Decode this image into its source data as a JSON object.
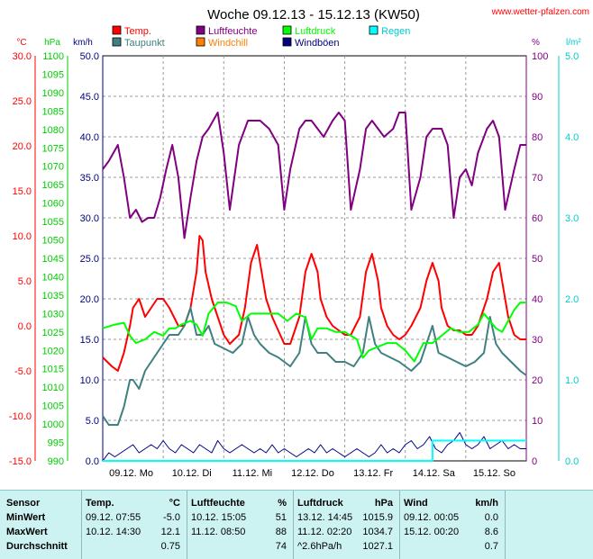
{
  "chart_data": {
    "type": "line",
    "title": "Woche 09.12.13 - 15.12.13 (KW50)",
    "watermark": "www.wetter-pfalzen.com",
    "axes": {
      "temp": {
        "unit": "°C",
        "min": -15,
        "max": 30,
        "step": 5,
        "color": "#ff0000",
        "ticks": [
          "30.0",
          "25.0",
          "20.0",
          "15.0",
          "10.0",
          "5.0",
          "0.0",
          "-5.0",
          "-10.0",
          "-15.0"
        ]
      },
      "pressure": {
        "unit": "hPa",
        "min": 990,
        "max": 1100,
        "step": 5,
        "color": "#00cc00",
        "ticks": [
          "1100",
          "1095",
          "1090",
          "1085",
          "1080",
          "1075",
          "1070",
          "1065",
          "1060",
          "1055",
          "1050",
          "1045",
          "1040",
          "1035",
          "1030",
          "1025",
          "1020",
          "1015",
          "1010",
          "1005",
          "1000",
          "995",
          "990"
        ]
      },
      "wind": {
        "unit": "km/h",
        "min": 0,
        "max": 50,
        "step": 5,
        "color": "#000080",
        "ticks": [
          "50.0",
          "45.0",
          "40.0",
          "35.0",
          "30.0",
          "25.0",
          "20.0",
          "15.0",
          "10.0",
          "5.0",
          "0.0"
        ]
      },
      "humidity": {
        "unit": "%",
        "min": 0,
        "max": 100,
        "step": 10,
        "color": "#800080",
        "ticks": [
          "100",
          "90",
          "80",
          "70",
          "60",
          "50",
          "40",
          "30",
          "20",
          "10",
          "0"
        ]
      },
      "rain": {
        "unit": "l/m²",
        "min": 0,
        "max": 5,
        "step": 1,
        "color": "#00cccc",
        "ticks": [
          "5.0",
          "4.0",
          "3.0",
          "2.0",
          "1.0",
          "0.0"
        ]
      }
    },
    "x_labels": [
      "09.12.  Mo",
      "10.12.  Di",
      "11.12.  Mi",
      "12.12.  Do",
      "13.12.  Fr",
      "14.12.  Sa",
      "15.12.  So"
    ],
    "days": 7,
    "legend": [
      {
        "label": "Temp.",
        "color": "#ff0000"
      },
      {
        "label": "Taupunkt",
        "color": "#408080"
      },
      {
        "label": "Luftfeuchte",
        "color": "#800080"
      },
      {
        "label": "Windchill",
        "color": "#ff8000"
      },
      {
        "label": "Luftdruck",
        "color": "#00ff00"
      },
      {
        "label": "Windböen",
        "color": "#000080"
      },
      {
        "label": "Regen",
        "color": "#00ffff"
      }
    ],
    "series": [
      {
        "name": "Temp.",
        "color": "#ff0000",
        "axis": "temp",
        "x": [
          0,
          0.15,
          0.25,
          0.35,
          0.45,
          0.5,
          0.6,
          0.7,
          0.8,
          0.9,
          1.0,
          1.1,
          1.25,
          1.35,
          1.45,
          1.55,
          1.6,
          1.65,
          1.7,
          1.8,
          1.9,
          2.0,
          2.1,
          2.25,
          2.35,
          2.45,
          2.55,
          2.6,
          2.7,
          2.8,
          2.9,
          3.0,
          3.1,
          3.25,
          3.35,
          3.45,
          3.55,
          3.6,
          3.7,
          3.8,
          3.9,
          4.0,
          4.1,
          4.25,
          4.35,
          4.45,
          4.55,
          4.6,
          4.7,
          4.8,
          4.9,
          5.0,
          5.1,
          5.25,
          5.35,
          5.45,
          5.55,
          5.6,
          5.7,
          5.8,
          5.9,
          6.0,
          6.1,
          6.2,
          6.35,
          6.45,
          6.55,
          6.6,
          6.7,
          6.8,
          6.9,
          7.0
        ],
        "y": [
          -3.5,
          -4.5,
          -5,
          -3,
          0,
          2,
          3,
          1,
          2,
          3,
          3,
          2,
          0,
          0,
          2,
          6,
          10,
          9.5,
          6,
          3,
          1,
          -1,
          -2,
          -1,
          2,
          7,
          9,
          7,
          3,
          1,
          -0.5,
          -2,
          -2,
          1,
          6,
          8,
          6,
          3,
          1,
          0,
          -0.5,
          -1,
          -1,
          1,
          6,
          8,
          5,
          2,
          0,
          -1,
          -1.5,
          -1,
          0,
          2,
          5,
          7,
          5,
          2,
          0,
          -0.5,
          -0.5,
          -1,
          -1,
          0,
          3,
          6,
          7,
          5,
          1,
          -1,
          -1.5,
          -1.5
        ]
      },
      {
        "name": "Taupunkt",
        "color": "#408080",
        "axis": "temp",
        "x": [
          0,
          0.1,
          0.25,
          0.35,
          0.45,
          0.5,
          0.6,
          0.7,
          0.8,
          0.9,
          1.0,
          1.1,
          1.25,
          1.35,
          1.45,
          1.55,
          1.65,
          1.75,
          1.85,
          2.0,
          2.15,
          2.3,
          2.4,
          2.5,
          2.6,
          2.75,
          2.9,
          3.0,
          3.1,
          3.25,
          3.35,
          3.45,
          3.55,
          3.7,
          3.85,
          4.0,
          4.15,
          4.3,
          4.4,
          4.5,
          4.6,
          4.75,
          4.9,
          5.0,
          5.1,
          5.25,
          5.35,
          5.45,
          5.55,
          5.7,
          5.85,
          6.0,
          6.15,
          6.3,
          6.4,
          6.5,
          6.6,
          6.75,
          6.9,
          7.0
        ],
        "y": [
          -10,
          -11,
          -11,
          -9,
          -6,
          -6,
          -7,
          -5,
          -4,
          -3,
          -2,
          -1,
          -1,
          0,
          2,
          -1,
          -1,
          0,
          -2,
          -2.5,
          -3,
          -2,
          1,
          -1,
          -2,
          -3,
          -3.5,
          -4,
          -4.5,
          -3,
          1,
          -2,
          -3,
          -3,
          -4,
          -4,
          -4.5,
          -3,
          1,
          -2,
          -3,
          -3.5,
          -4,
          -4.5,
          -5,
          -4,
          -2,
          0,
          -3,
          -3.5,
          -4,
          -4.5,
          -4,
          -3,
          1,
          -2,
          -3,
          -4,
          -5,
          -5.5
        ]
      },
      {
        "name": "Luftfeuchte",
        "color": "#800080",
        "axis": "humidity",
        "x": [
          0,
          0.1,
          0.25,
          0.35,
          0.45,
          0.55,
          0.65,
          0.75,
          0.85,
          0.95,
          1.05,
          1.15,
          1.25,
          1.35,
          1.45,
          1.55,
          1.65,
          1.75,
          1.9,
          2.0,
          2.1,
          2.25,
          2.4,
          2.5,
          2.6,
          2.75,
          2.9,
          3.0,
          3.1,
          3.25,
          3.35,
          3.45,
          3.55,
          3.65,
          3.8,
          3.9,
          4.0,
          4.1,
          4.25,
          4.35,
          4.45,
          4.55,
          4.65,
          4.8,
          4.9,
          5.0,
          5.1,
          5.25,
          5.35,
          5.45,
          5.5,
          5.6,
          5.7,
          5.8,
          5.9,
          6.0,
          6.1,
          6.2,
          6.35,
          6.45,
          6.55,
          6.65,
          6.8,
          6.9,
          7.0
        ],
        "y": [
          72,
          74,
          78,
          70,
          60,
          62,
          59,
          60,
          60,
          65,
          72,
          78,
          70,
          55,
          65,
          74,
          80,
          82,
          86,
          76,
          62,
          78,
          84,
          84,
          84,
          82,
          78,
          62,
          72,
          82,
          84,
          84,
          82,
          80,
          84,
          86,
          84,
          62,
          72,
          82,
          84,
          82,
          80,
          82,
          86,
          86,
          62,
          70,
          80,
          82,
          82,
          82,
          78,
          60,
          70,
          72,
          68,
          76,
          82,
          84,
          80,
          62,
          72,
          78,
          78
        ]
      },
      {
        "name": "Luftdruck",
        "color": "#00ff00",
        "axis": "pressure",
        "x": [
          0,
          0.2,
          0.35,
          0.45,
          0.55,
          0.7,
          0.85,
          1.0,
          1.1,
          1.2,
          1.3,
          1.45,
          1.55,
          1.65,
          1.75,
          1.9,
          2.05,
          2.2,
          2.3,
          2.45,
          2.6,
          2.75,
          2.9,
          3.05,
          3.2,
          3.35,
          3.45,
          3.55,
          3.7,
          3.85,
          4.0,
          4.1,
          4.2,
          4.3,
          4.4,
          4.55,
          4.7,
          4.85,
          5.0,
          5.15,
          5.3,
          5.45,
          5.6,
          5.75,
          5.9,
          6.05,
          6.2,
          6.3,
          6.4,
          6.5,
          6.6,
          6.7,
          6.8,
          6.9,
          7.0
        ],
        "y": [
          1026,
          1027,
          1027.5,
          1024,
          1022,
          1023,
          1025,
          1024,
          1026,
          1026,
          1027,
          1028,
          1027,
          1024,
          1030,
          1033,
          1033,
          1032,
          1028,
          1030,
          1030,
          1030,
          1030,
          1028,
          1030,
          1029,
          1023,
          1026,
          1026,
          1025,
          1025,
          1024,
          1023,
          1018,
          1020,
          1021,
          1022,
          1022,
          1020,
          1017,
          1022,
          1022,
          1024,
          1026,
          1025,
          1025,
          1027,
          1030,
          1028,
          1026,
          1025,
          1028,
          1031,
          1033,
          1033
        ]
      },
      {
        "name": "Windböen",
        "color": "#000080",
        "axis": "wind",
        "x": [
          0,
          0.1,
          0.2,
          0.3,
          0.4,
          0.5,
          0.6,
          0.7,
          0.8,
          0.9,
          1.0,
          1.1,
          1.2,
          1.3,
          1.4,
          1.5,
          1.6,
          1.7,
          1.8,
          1.9,
          2.0,
          2.1,
          2.2,
          2.3,
          2.4,
          2.5,
          2.6,
          2.7,
          2.8,
          2.9,
          3.0,
          3.1,
          3.2,
          3.3,
          3.4,
          3.5,
          3.6,
          3.7,
          3.8,
          3.9,
          4.0,
          4.1,
          4.2,
          4.3,
          4.4,
          4.5,
          4.6,
          4.7,
          4.8,
          4.9,
          5.0,
          5.1,
          5.2,
          5.3,
          5.4,
          5.5,
          5.6,
          5.7,
          5.8,
          5.9,
          6.0,
          6.1,
          6.2,
          6.3,
          6.4,
          6.5,
          6.6,
          6.7,
          6.8,
          6.9,
          7.0
        ],
        "y": [
          0,
          1,
          0.5,
          1,
          1.5,
          2,
          1,
          1.5,
          2,
          1.5,
          2.5,
          1.5,
          1,
          2,
          1.5,
          1,
          2,
          1.5,
          1,
          2.5,
          1.5,
          1,
          1.5,
          2,
          1.5,
          1,
          1.5,
          1,
          2,
          1,
          1.5,
          1,
          0.5,
          1,
          1.5,
          1,
          2,
          1,
          1.5,
          1,
          0.5,
          1,
          1.5,
          1,
          0.5,
          1,
          2,
          1,
          1.5,
          1,
          2,
          2.5,
          1.5,
          2,
          3,
          1.5,
          1,
          2,
          2.5,
          3.5,
          2,
          1.5,
          2,
          3,
          1.5,
          2,
          2.5,
          1.5,
          2,
          1.5,
          1.5
        ]
      },
      {
        "name": "Regen",
        "color": "#00ffff",
        "axis": "rain",
        "x": [
          0,
          5.45,
          5.45,
          7.0
        ],
        "y": [
          0,
          0,
          0.25,
          0.25
        ]
      }
    ]
  },
  "stats": {
    "columns": [
      {
        "title": "Sensor"
      },
      {
        "title": "Temp.",
        "unit": "°C"
      },
      {
        "title": "Luftfeuchte",
        "unit": "%"
      },
      {
        "title": "Luftdruck",
        "unit": "hPa"
      },
      {
        "title": "Wind",
        "unit": "km/h"
      }
    ],
    "rows": [
      {
        "label": "MinWert",
        "temp": {
          "time": "09.12.  07:55",
          "value": "-5.0"
        },
        "hum": {
          "time": "10.12.  15:05",
          "value": "51"
        },
        "press": {
          "time": "13.12.  14:45",
          "value": "1015.9"
        },
        "wind": {
          "time": "09.12.  00:05",
          "value": "0.0"
        }
      },
      {
        "label": "MaxWert",
        "temp": {
          "time": "10.12.  14:30",
          "value": "12.1"
        },
        "hum": {
          "time": "11.12.  08:50",
          "value": "88"
        },
        "press": {
          "time": "11.12.  02:20",
          "value": "1034.7"
        },
        "wind": {
          "time": "15.12.  00:20",
          "value": "8.6"
        }
      },
      {
        "label": "Durchschnitt",
        "temp": {
          "time": "",
          "value": "0.75"
        },
        "hum": {
          "time": "",
          "value": "74"
        },
        "press": {
          "time": "^2.6hPa/h",
          "value": "1027.1"
        },
        "wind": {
          "time": "",
          "value": "0.7"
        }
      }
    ]
  }
}
